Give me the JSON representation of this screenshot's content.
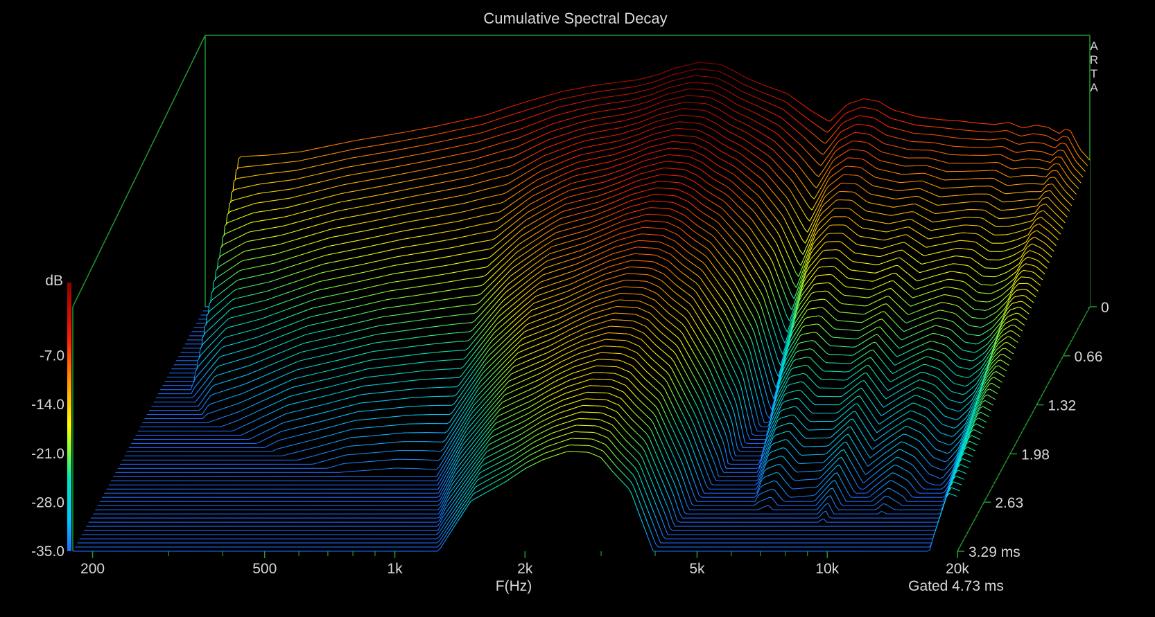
{
  "chart_data": {
    "type": "waterfall",
    "title": "Cumulative Spectral Decay",
    "brand": [
      "A",
      "R",
      "T",
      "A"
    ],
    "xlabel": "F(Hz)",
    "x_scale": "log",
    "xlim": [
      180,
      20000
    ],
    "x_ticks": [
      {
        "value": 200,
        "label": "200"
      },
      {
        "value": 500,
        "label": "500"
      },
      {
        "value": 1000,
        "label": "1k"
      },
      {
        "value": 2000,
        "label": "2k"
      },
      {
        "value": 5000,
        "label": "5k"
      },
      {
        "value": 10000,
        "label": "10k"
      },
      {
        "value": 20000,
        "label": "20k"
      }
    ],
    "zlabel": "dB",
    "zlim": [
      -35,
      0
    ],
    "z_ticks": [
      {
        "value": -7,
        "label": "-7.0"
      },
      {
        "value": -14,
        "label": "-14.0"
      },
      {
        "value": -21,
        "label": "-21.0"
      },
      {
        "value": -28,
        "label": "-28.0"
      },
      {
        "value": -35,
        "label": "-35.0"
      }
    ],
    "tlim": [
      0,
      3.29
    ],
    "t_ticks": [
      {
        "value": 0,
        "label": "0"
      },
      {
        "value": 0.66,
        "label": "0.66"
      },
      {
        "value": 1.32,
        "label": "1.32"
      },
      {
        "value": 1.98,
        "label": "1.98"
      },
      {
        "value": 2.63,
        "label": "2.63"
      },
      {
        "value": 3.29,
        "label": "3.29 ms"
      }
    ],
    "gate_label": "Gated 4.73 ms",
    "slice_count": 60,
    "initial_response": {
      "freq_hz": [
        200,
        215,
        250,
        300,
        400,
        500,
        600,
        700,
        800,
        900,
        1000,
        1200,
        1400,
        1600,
        1800,
        2000,
        2200,
        2500,
        2800,
        3000,
        3200,
        3500,
        4000,
        4500,
        5000,
        5200,
        5500,
        6000,
        6500,
        7000,
        7500,
        8000,
        9000,
        10000,
        11000,
        12000,
        13000,
        14000,
        15000,
        16000,
        17000,
        17500,
        18000,
        19000,
        20000
      ],
      "level_db": [
        -35,
        -13.5,
        -13.3,
        -12.8,
        -11.2,
        -10.2,
        -9.3,
        -8.4,
        -7.6,
        -6.5,
        -5.6,
        -4.2,
        -3.4,
        -2.9,
        -2.5,
        -1.8,
        -0.8,
        0,
        -0.3,
        -1.2,
        -2.2,
        -3.2,
        -4.5,
        -6.8,
        -8.5,
        -7.5,
        -6,
        -5.2,
        -5.6,
        -6.8,
        -7.3,
        -7.8,
        -8.2,
        -8.4,
        -8.7,
        -8.9,
        -8.6,
        -9.4,
        -9,
        -9.3,
        -10.2,
        -9.6,
        -9.7,
        -12.5,
        -14
      ]
    },
    "decay_rate_db_per_ms": {
      "freq_hz": [
        200,
        250,
        400,
        600,
        800,
        1000,
        1200,
        1500,
        2000,
        2500,
        3000,
        3500,
        4000,
        4500,
        5000,
        5200,
        5500,
        6000,
        6500,
        7000,
        8000,
        9000,
        10000,
        11000,
        12000,
        13000,
        14000,
        15000,
        16000,
        17000,
        18000,
        19000,
        20000
      ],
      "value": [
        20,
        14,
        12,
        11.5,
        12,
        13,
        10,
        7.5,
        6.5,
        6.3,
        6.2,
        7,
        9.5,
        12,
        18,
        16,
        13,
        11,
        10.5,
        11,
        10.5,
        9,
        11,
        10,
        9.2,
        9.8,
        10.5,
        11,
        10,
        8,
        6.5,
        4.3,
        4
      ]
    },
    "noise_floor_db": -35
  }
}
